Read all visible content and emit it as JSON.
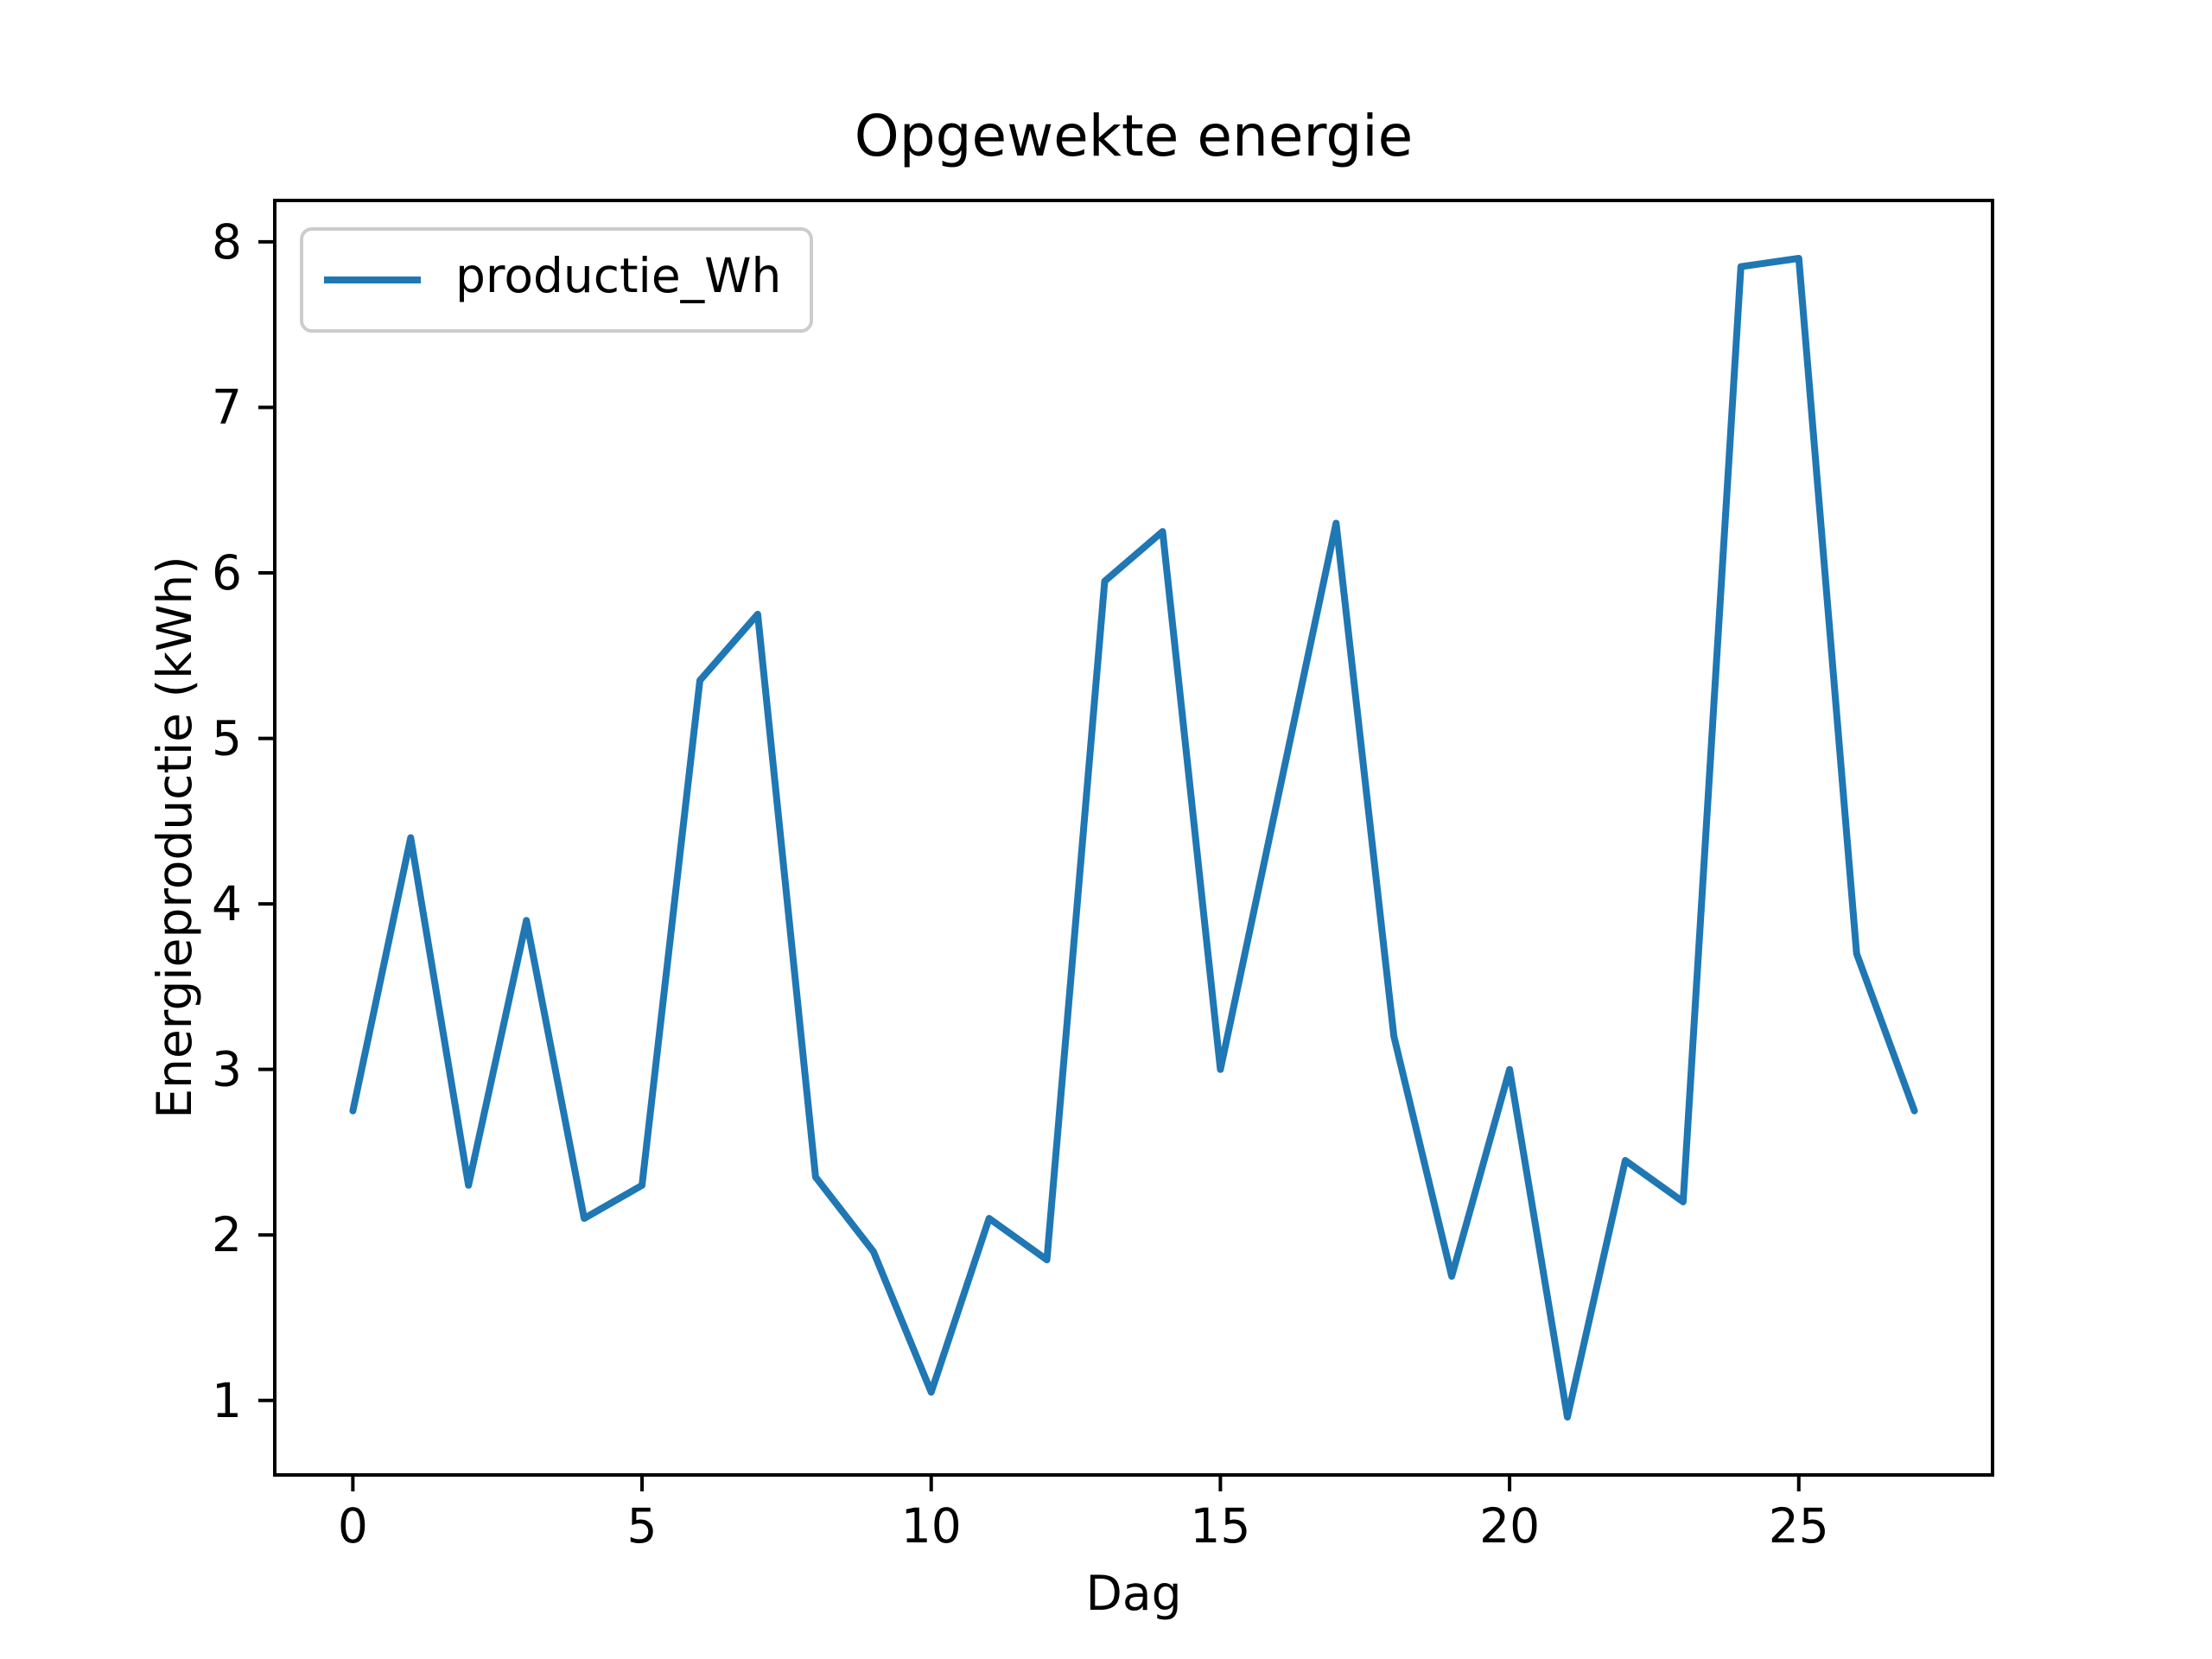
{
  "title": "Opgewekte energie",
  "legend": {
    "label": "productie_Wh",
    "line_color": "#1f77b4"
  },
  "chart_data": {
    "type": "line",
    "title": "Opgewekte energie",
    "xlabel": "Dag",
    "ylabel": "Energieproductie (kWh)",
    "grid": false,
    "legend_position": "upper left",
    "xlim": [
      -1.35,
      28.35
    ],
    "ylim": [
      0.55,
      8.25
    ],
    "xticks": [
      0,
      5,
      10,
      15,
      20,
      25
    ],
    "yticks": [
      1,
      2,
      3,
      4,
      5,
      6,
      7,
      8
    ],
    "series": [
      {
        "name": "productie_Wh",
        "color": "#1f77b4",
        "x": [
          0,
          1,
          2,
          3,
          4,
          5,
          6,
          7,
          8,
          9,
          10,
          11,
          12,
          13,
          14,
          15,
          16,
          17,
          18,
          19,
          20,
          21,
          22,
          23,
          24,
          25,
          26,
          27
        ],
        "y": [
          2.75,
          4.4,
          2.3,
          3.9,
          2.1,
          2.3,
          5.35,
          5.75,
          2.35,
          1.9,
          1.05,
          2.1,
          1.85,
          5.95,
          6.25,
          3.0,
          4.65,
          6.3,
          3.2,
          1.75,
          3.0,
          0.9,
          2.45,
          2.2,
          7.85,
          7.9,
          3.7,
          2.75
        ]
      }
    ],
    "colors": {
      "line": "#1f77b4",
      "axes": "#000000",
      "background": "#ffffff",
      "legend_border": "#cccccc"
    }
  }
}
